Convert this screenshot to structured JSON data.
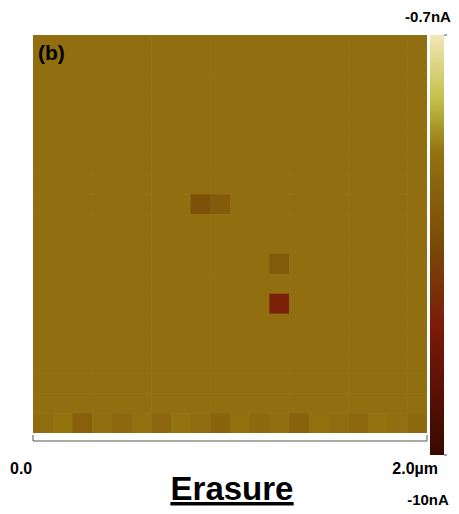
{
  "chart_data": {
    "type": "heatmap",
    "title": "Erasure",
    "panel_label": "(b)",
    "xlim": [
      0,
      2
    ],
    "xticks": [
      {
        "value": 0,
        "label": "0.0"
      },
      {
        "value": 2,
        "label": "2.0µm"
      }
    ],
    "tick_labels": "x",
    "grid": false,
    "colorbar_range": [
      -10,
      -0.7
    ],
    "colorbar_ticks": [
      {
        "value": -0.7,
        "label": "-0.7nA"
      },
      {
        "value": -10,
        "label": "-10nA"
      }
    ],
    "cells": [
      [
        -3.5,
        -3.5,
        -3.5,
        -3.5,
        -3.5,
        -3.5,
        -3.5,
        -3.5,
        -3.5,
        -3.5,
        -3.5,
        -3.5,
        -3.5,
        -3.5,
        -3.5,
        -3.5,
        -3.5,
        -3.5,
        -3.5,
        -3.5
      ],
      [
        -3.5,
        -3.5,
        -3.5,
        -3.5,
        -3.5,
        -3.5,
        -3.5,
        -3.5,
        -3.5,
        -3.5,
        -3.5,
        -3.5,
        -3.5,
        -3.5,
        -3.5,
        -3.5,
        -3.5,
        -3.5,
        -3.5,
        -3.5
      ],
      [
        -3.5,
        -3.5,
        -3.5,
        -3.5,
        -3.5,
        -3.5,
        -3.5,
        -3.5,
        -3.5,
        -3.5,
        -3.5,
        -3.5,
        -3.5,
        -3.5,
        -3.5,
        -3.5,
        -3.5,
        -3.5,
        -3.5,
        -3.5
      ],
      [
        -3.5,
        -3.5,
        -3.5,
        -3.5,
        -3.5,
        -3.5,
        -3.5,
        -3.5,
        -3.5,
        -3.5,
        -3.5,
        -3.5,
        -3.5,
        -3.5,
        -3.5,
        -3.5,
        -3.5,
        -3.5,
        -3.5,
        -3.5
      ],
      [
        -3.5,
        -3.5,
        -3.5,
        -3.5,
        -3.5,
        -3.5,
        -3.5,
        -3.5,
        -3.5,
        -3.5,
        -3.5,
        -3.5,
        -3.5,
        -3.5,
        -3.5,
        -3.5,
        -3.5,
        -3.5,
        -3.5,
        -3.5
      ],
      [
        -3.5,
        -3.5,
        -3.5,
        -3.5,
        -3.5,
        -3.5,
        -3.5,
        -3.5,
        -3.5,
        -3.5,
        -3.5,
        -3.5,
        -3.5,
        -3.5,
        -3.5,
        -3.5,
        -3.5,
        -3.5,
        -3.5,
        -3.5
      ],
      [
        -3.5,
        -3.5,
        -3.5,
        -3.5,
        -3.5,
        -3.5,
        -3.5,
        -3.5,
        -3.5,
        -3.5,
        -3.5,
        -3.5,
        -3.5,
        -3.5,
        -3.5,
        -3.5,
        -3.5,
        -3.5,
        -3.5,
        -3.5
      ],
      [
        -3.5,
        -3.5,
        -3.5,
        -3.5,
        -3.5,
        -3.5,
        -3.5,
        -3.5,
        -3.5,
        -3.5,
        -3.5,
        -3.5,
        -3.5,
        -3.5,
        -3.5,
        -3.5,
        -3.5,
        -3.5,
        -3.5,
        -3.5
      ],
      [
        -3.5,
        -3.5,
        -3.5,
        -3.5,
        -3.5,
        -3.5,
        -3.5,
        -3.5,
        -5.0,
        -4.5,
        -3.5,
        -3.5,
        -3.5,
        -3.5,
        -3.5,
        -3.5,
        -3.5,
        -3.5,
        -3.5,
        -3.5
      ],
      [
        -3.5,
        -3.5,
        -3.5,
        -3.5,
        -3.5,
        -3.5,
        -3.5,
        -3.5,
        -3.5,
        -3.5,
        -3.5,
        -3.5,
        -3.5,
        -3.5,
        -3.5,
        -3.5,
        -3.5,
        -3.5,
        -3.5,
        -3.5
      ],
      [
        -3.5,
        -3.5,
        -3.5,
        -3.5,
        -3.5,
        -3.5,
        -3.5,
        -3.5,
        -3.5,
        -3.5,
        -3.5,
        -3.5,
        -3.5,
        -3.5,
        -3.5,
        -3.5,
        -3.5,
        -3.5,
        -3.5,
        -3.5
      ],
      [
        -3.5,
        -3.5,
        -3.5,
        -3.5,
        -3.5,
        -3.5,
        -3.5,
        -3.5,
        -3.5,
        -3.5,
        -3.5,
        -3.5,
        -4.5,
        -3.5,
        -3.5,
        -3.5,
        -3.5,
        -3.5,
        -3.5,
        -3.5
      ],
      [
        -3.5,
        -3.5,
        -3.5,
        -3.5,
        -3.5,
        -3.5,
        -3.5,
        -3.5,
        -3.5,
        -3.5,
        -3.5,
        -3.5,
        -3.5,
        -3.5,
        -3.5,
        -3.5,
        -3.5,
        -3.5,
        -3.5,
        -3.5
      ],
      [
        -3.5,
        -3.5,
        -3.5,
        -3.5,
        -3.5,
        -3.5,
        -3.5,
        -3.5,
        -3.5,
        -3.5,
        -3.5,
        -3.5,
        -7.0,
        -3.5,
        -3.5,
        -3.5,
        -3.5,
        -3.5,
        -3.5,
        -3.5
      ],
      [
        -3.5,
        -3.5,
        -3.5,
        -3.5,
        -3.5,
        -3.5,
        -3.5,
        -3.5,
        -3.5,
        -3.5,
        -3.5,
        -3.5,
        -3.5,
        -3.5,
        -3.5,
        -3.5,
        -3.5,
        -3.5,
        -3.5,
        -3.5
      ],
      [
        -3.5,
        -3.5,
        -3.5,
        -3.5,
        -3.5,
        -3.5,
        -3.5,
        -3.5,
        -3.5,
        -3.5,
        -3.5,
        -3.5,
        -3.5,
        -3.5,
        -3.5,
        -3.5,
        -3.5,
        -3.5,
        -3.5,
        -3.5
      ],
      [
        -3.5,
        -3.5,
        -3.5,
        -3.5,
        -3.5,
        -3.5,
        -3.5,
        -3.5,
        -3.5,
        -3.5,
        -3.5,
        -3.5,
        -3.5,
        -3.5,
        -3.5,
        -3.5,
        -3.5,
        -3.5,
        -3.5,
        -3.5
      ],
      [
        -3.5,
        -3.5,
        -3.5,
        -3.5,
        -3.5,
        -3.5,
        -3.5,
        -3.5,
        -3.5,
        -3.5,
        -3.5,
        -3.5,
        -3.5,
        -3.5,
        -3.5,
        -3.5,
        -3.5,
        -3.5,
        -3.5,
        -3.5
      ],
      [
        -3.5,
        -3.5,
        -3.5,
        -3.5,
        -3.5,
        -3.5,
        -3.5,
        -3.5,
        -3.5,
        -3.5,
        -3.5,
        -3.5,
        -3.5,
        -3.5,
        -3.5,
        -3.5,
        -3.5,
        -3.5,
        -3.5,
        -3.5
      ],
      [
        -3.6,
        -3.3,
        -4.2,
        -3.5,
        -3.8,
        -3.4,
        -3.9,
        -3.3,
        -3.6,
        -4.0,
        -3.4,
        -3.7,
        -3.5,
        -4.1,
        -3.4,
        -3.6,
        -3.8,
        -3.3,
        -3.5,
        -3.7
      ]
    ]
  }
}
